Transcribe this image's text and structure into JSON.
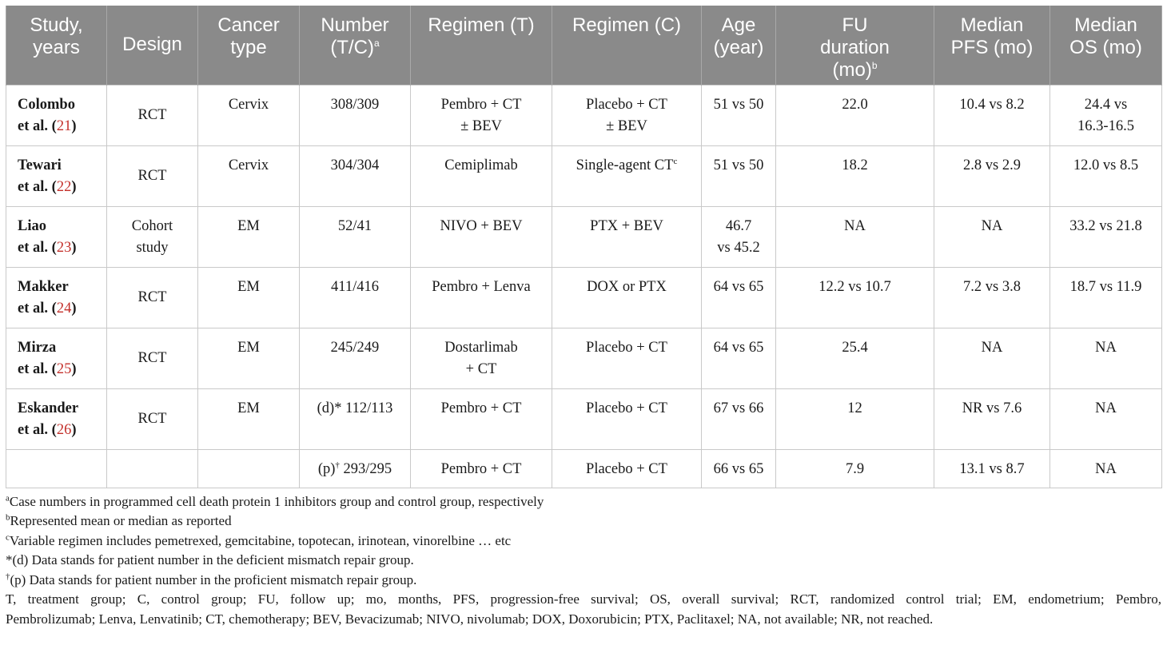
{
  "table": {
    "headers": {
      "study": [
        "Study,",
        "years"
      ],
      "design": "Design",
      "cancer": [
        "Cancer",
        "type"
      ],
      "number": [
        "Number",
        "(T/C)"
      ],
      "number_sup": "a",
      "regimen_t": "Regimen (T)",
      "regimen_c": "Regimen (C)",
      "age": [
        "Age",
        "(year)"
      ],
      "fu": [
        "FU",
        "duration",
        "(mo)"
      ],
      "fu_sup": "b",
      "pfs": [
        "Median",
        "PFS (mo)"
      ],
      "os": [
        "Median",
        "OS (mo)"
      ]
    },
    "rows": [
      {
        "author": "Colombo",
        "etal": "et al. (",
        "ref": "21",
        "close": ")",
        "design": "RCT",
        "cancer": "Cervix",
        "number_prefix": "",
        "number_sup": "",
        "number": "308/309",
        "regimen_t": [
          "Pembro + CT",
          "± BEV"
        ],
        "regimen_c": [
          "Placebo + CT",
          "± BEV"
        ],
        "regimen_c_sup": "",
        "age": [
          "51 vs 50"
        ],
        "fu": "22.0",
        "pfs": "10.4 vs 8.2",
        "os": [
          "24.4 vs",
          "16.3-16.5"
        ]
      },
      {
        "author": "Tewari",
        "etal": "et al. (",
        "ref": "22",
        "close": ")",
        "design": "RCT",
        "cancer": "Cervix",
        "number_prefix": "",
        "number_sup": "",
        "number": "304/304",
        "regimen_t": [
          "Cemiplimab"
        ],
        "regimen_c": [
          "Single-agent CT"
        ],
        "regimen_c_sup": "c",
        "age": [
          "51 vs 50"
        ],
        "fu": "18.2",
        "pfs": "2.8 vs 2.9",
        "os": [
          "12.0 vs 8.5"
        ]
      },
      {
        "author": "Liao",
        "etal": "et al. (",
        "ref": "23",
        "close": ")",
        "design": "Cohort study",
        "cancer": "EM",
        "number_prefix": "",
        "number_sup": "",
        "number": "52/41",
        "regimen_t": [
          "NIVO + BEV"
        ],
        "regimen_c": [
          "PTX + BEV"
        ],
        "regimen_c_sup": "",
        "age": [
          "46.7",
          "vs 45.2"
        ],
        "fu": "NA",
        "pfs": "NA",
        "os": [
          "33.2 vs 21.8"
        ]
      },
      {
        "author": "Makker",
        "etal": "et al. (",
        "ref": "24",
        "close": ")",
        "design": "RCT",
        "cancer": "EM",
        "number_prefix": "",
        "number_sup": "",
        "number": "411/416",
        "regimen_t": [
          "Pembro + Lenva"
        ],
        "regimen_c": [
          "DOX or PTX"
        ],
        "regimen_c_sup": "",
        "age": [
          "64 vs 65"
        ],
        "fu": "12.2 vs 10.7",
        "pfs": "7.2 vs 3.8",
        "os": [
          "18.7 vs 11.9"
        ]
      },
      {
        "author": "Mirza",
        "etal": "et al. (",
        "ref": "25",
        "close": ")",
        "design": "RCT",
        "cancer": "EM",
        "number_prefix": "",
        "number_sup": "",
        "number": "245/249",
        "regimen_t": [
          "Dostarlimab",
          "+ CT"
        ],
        "regimen_c": [
          "Placebo + CT"
        ],
        "regimen_c_sup": "",
        "age": [
          "64 vs 65"
        ],
        "fu": "25.4",
        "pfs": "NA",
        "os": [
          "NA"
        ]
      },
      {
        "author": "Eskander",
        "etal": "et al. (",
        "ref": "26",
        "close": ")",
        "design": "RCT",
        "cancer": "EM",
        "number_prefix": "(d)*",
        "number_sup": "",
        "number": " 112/113",
        "regimen_t": [
          "Pembro + CT"
        ],
        "regimen_c": [
          "Placebo + CT"
        ],
        "regimen_c_sup": "",
        "age": [
          "67 vs 66"
        ],
        "fu": "12",
        "pfs": "NR vs 7.6",
        "os": [
          "NA"
        ]
      },
      {
        "author": "",
        "etal": "",
        "ref": "",
        "close": "",
        "design": "",
        "cancer": "",
        "number_prefix": "(p)",
        "number_sup": "†",
        "number": " 293/295",
        "regimen_t": [
          "Pembro + CT"
        ],
        "regimen_c": [
          "Placebo + CT"
        ],
        "regimen_c_sup": "",
        "age": [
          "66 vs 65"
        ],
        "fu": "7.9",
        "pfs": "13.1 vs 8.7",
        "os": [
          "NA"
        ]
      }
    ]
  },
  "notes": [
    {
      "sup": "a",
      "text": "Case numbers in programmed cell death protein 1 inhibitors group and control group, respectively"
    },
    {
      "sup": "b",
      "text": "Represented mean or median as reported"
    },
    {
      "sup": "c",
      "text": "Variable regimen includes pemetrexed, gemcitabine, topotecan, irinotean, vinorelbine … etc"
    },
    {
      "sup": "",
      "text": "*(d) Data stands for patient number in the deficient mismatch repair group."
    },
    {
      "sup": "†",
      "text": "(p) Data stands for patient number in the proficient mismatch repair group."
    }
  ],
  "abbreviations": [
    "T, treatment group; C, control group; FU, follow up; mo, months, PFS, progression-free survival; OS, overall survival; RCT, randomized control trial; EM, endometrium; Pembro,",
    "Pembrolizumab; Lenva, Lenvatinib; CT, chemotherapy; BEV, Bevacizumab; NIVO, nivolumab; DOX, Doxorubicin; PTX, Paclitaxel; NA, not available; NR, not reached."
  ]
}
